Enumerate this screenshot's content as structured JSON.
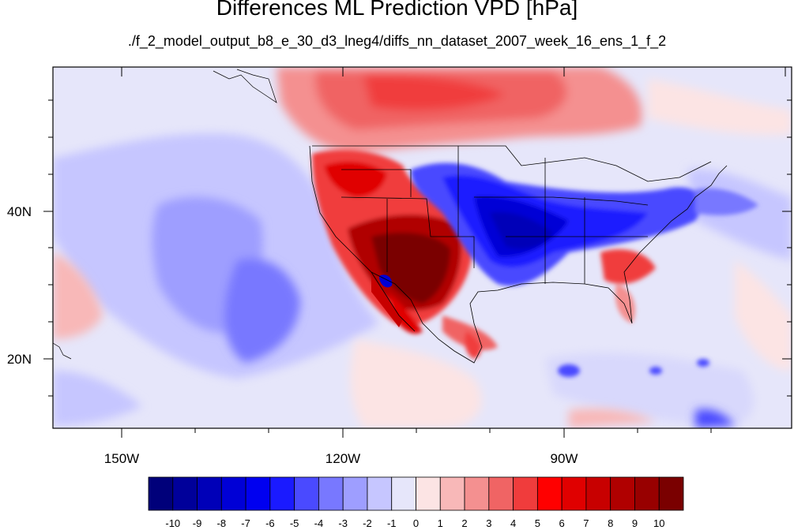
{
  "title": "Differences ML Prediction VPD [hPa]",
  "subtitle": "./f_2_model_output_b8_e_30_d3_lneg4/diffs_nn_dataset_2007_week_16_ens_1_f_2",
  "map": {
    "lon_labels": [
      "150W",
      "120W",
      "90W"
    ],
    "lat_labels": [
      "40N",
      "20N"
    ]
  },
  "colorbar": {
    "labels": [
      "-10",
      "-9",
      "-8",
      "-7",
      "-6",
      "-5",
      "-4",
      "-3",
      "-2",
      "-1",
      "0",
      "1",
      "2",
      "3",
      "4",
      "5",
      "6",
      "7",
      "8",
      "9",
      "10"
    ],
    "colors": [
      "#00007a",
      "#00009a",
      "#0000b8",
      "#0000d6",
      "#0000f0",
      "#1a1aff",
      "#4a4aff",
      "#7878ff",
      "#9e9eff",
      "#c6c6ff",
      "#e6e6fa",
      "#fce4e4",
      "#f8b8b8",
      "#f49090",
      "#f06464",
      "#f03c3c",
      "#ff0000",
      "#e00000",
      "#c80000",
      "#b00000",
      "#980000",
      "#7a0000"
    ]
  },
  "colors": {
    "background_level": "#e6e6fa"
  }
}
